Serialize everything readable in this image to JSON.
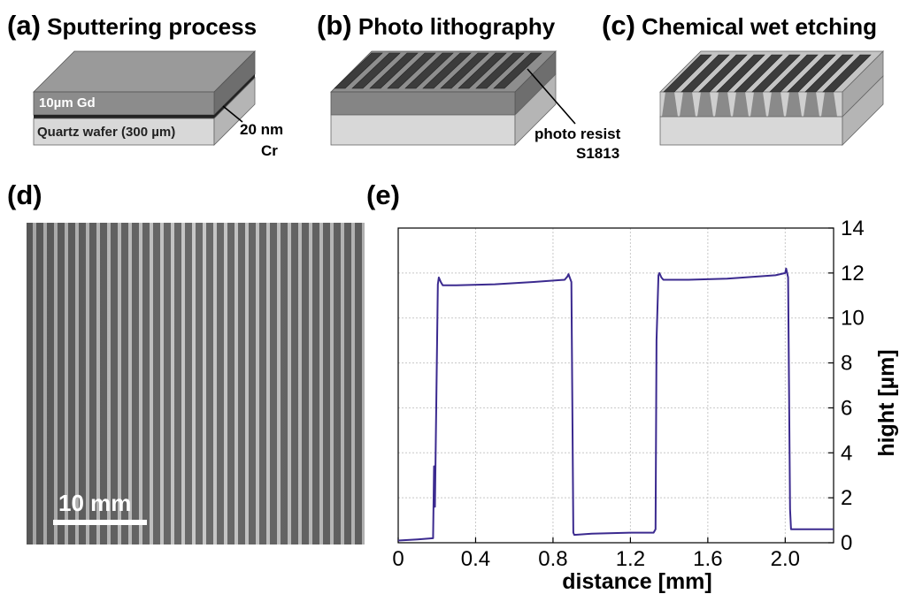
{
  "panel_a": {
    "label": "(a)",
    "title": "Sputtering process",
    "layer_top": "10µm Gd",
    "layer_bottom": "Quartz wafer (300 µm)",
    "callout_line1": "20 nm",
    "callout_line2": "Cr"
  },
  "panel_b": {
    "label": "(b)",
    "title": "Photo lithography",
    "callout_line1": "photo resist",
    "callout_line2": "S1813"
  },
  "panel_c": {
    "label": "(c)",
    "title": "Chemical wet etching"
  },
  "panel_d": {
    "label": "(d)",
    "scale_bar": "10 mm"
  },
  "panel_e": {
    "label": "(e)"
  },
  "colors": {
    "trace": "#3b2a8f",
    "grid": "#c8c8c8",
    "resist": "#4a4a4a",
    "gd_layer": "#8c8c8c",
    "quartz": "#d6d6d6"
  },
  "chart_data": {
    "type": "line",
    "xlabel": "distance [mm]",
    "ylabel": "hight [µm]",
    "xlim": [
      0,
      2.25
    ],
    "ylim": [
      0,
      14
    ],
    "xticks": [
      0,
      0.4,
      0.8,
      1.2,
      1.6,
      2.0
    ],
    "xtick_labels": [
      "0",
      "0.4",
      "0.8",
      "1.2",
      "1.6",
      "2.0"
    ],
    "yticks": [
      0,
      2,
      4,
      6,
      8,
      10,
      12,
      14
    ],
    "ytick_labels": [
      "0",
      "2",
      "4",
      "6",
      "8",
      "10",
      "12",
      "14"
    ],
    "y_axis_side": "right",
    "grid": true,
    "series": [
      {
        "x": [
          0,
          0.1,
          0.18,
          0.185,
          0.19,
          0.205,
          0.21,
          0.22,
          0.23,
          0.3,
          0.5,
          0.7,
          0.86,
          0.875,
          0.88,
          0.895,
          0.905,
          0.91,
          1.0,
          1.2,
          1.32,
          1.33,
          1.335,
          1.345,
          1.35,
          1.36,
          1.37,
          1.5,
          1.7,
          1.95,
          2.0,
          2.005,
          2.015,
          2.025,
          2.03,
          2.035,
          2.05,
          2.1,
          2.2,
          2.25
        ],
        "y": [
          0.1,
          0.15,
          0.2,
          3.4,
          1.6,
          11.5,
          11.8,
          11.6,
          11.45,
          11.45,
          11.5,
          11.6,
          11.7,
          11.85,
          11.95,
          11.6,
          0.45,
          0.35,
          0.4,
          0.45,
          0.45,
          0.6,
          9.0,
          11.9,
          12.0,
          11.8,
          11.7,
          11.7,
          11.75,
          11.9,
          12.0,
          12.2,
          11.8,
          1.5,
          0.6,
          0.6,
          0.6,
          0.6,
          0.6,
          0.6
        ]
      }
    ]
  }
}
